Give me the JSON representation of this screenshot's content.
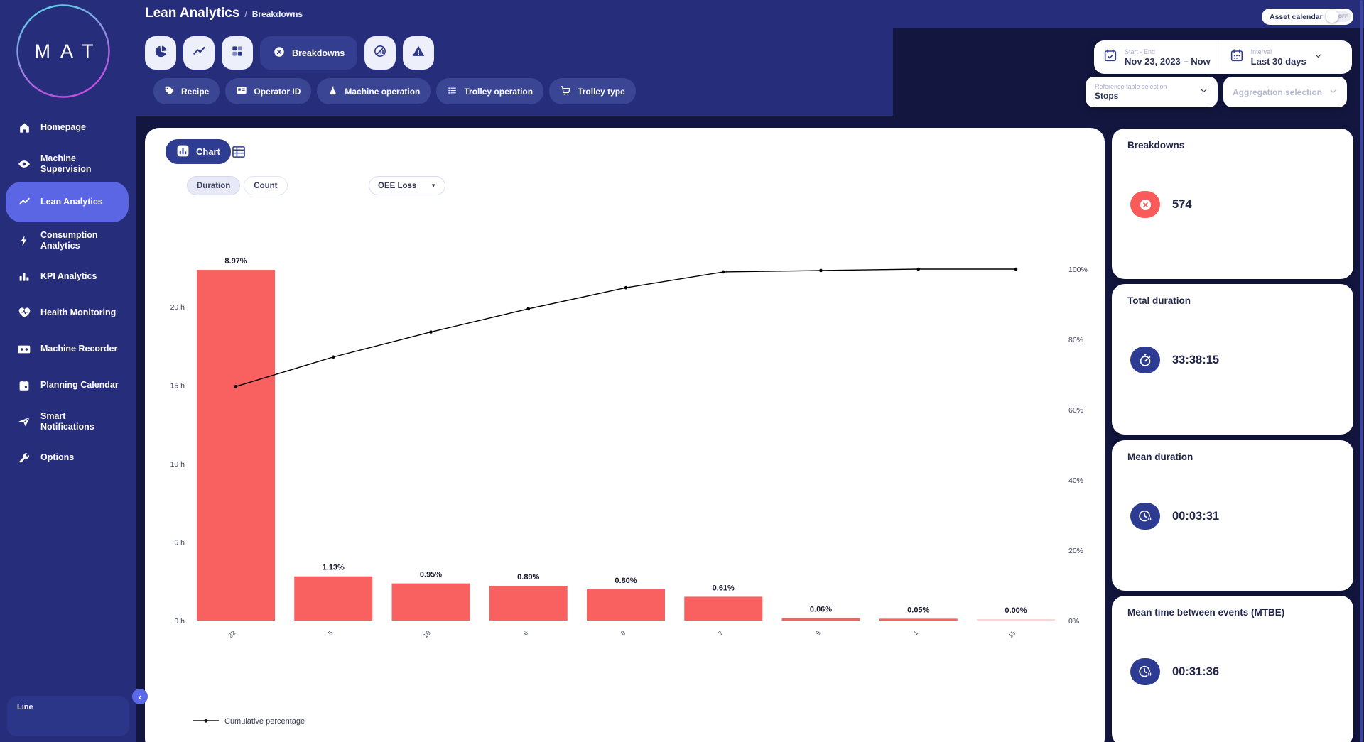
{
  "app": {
    "logo_text": "MAT"
  },
  "sidebar": {
    "items": [
      {
        "label": "Homepage",
        "icon": "home"
      },
      {
        "label": "Machine Supervision",
        "icon": "eye"
      },
      {
        "label": "Lean Analytics",
        "icon": "trend",
        "active": true
      },
      {
        "label": "Consumption Analytics",
        "icon": "bolt"
      },
      {
        "label": "KPI Analytics",
        "icon": "bar-chart"
      },
      {
        "label": "Health Monitoring",
        "icon": "heart-pulse"
      },
      {
        "label": "Machine Recorder",
        "icon": "cassette"
      },
      {
        "label": "Planning Calendar",
        "icon": "calendar"
      },
      {
        "label": "Smart Notifications",
        "icon": "paper-plane"
      },
      {
        "label": "Options",
        "icon": "wrench"
      }
    ],
    "collapse_icon": "‹"
  },
  "header": {
    "title": "Lean Analytics",
    "breadcrumb_separator": "/",
    "breadcrumb": "Breakdowns",
    "asset_calendar": {
      "label": "Asset calendar",
      "state": "OFF"
    }
  },
  "toolbar": {
    "active_view": {
      "label": "Breakdowns"
    },
    "chips": [
      {
        "label": "Recipe"
      },
      {
        "label": "Operator ID"
      },
      {
        "label": "Machine operation"
      },
      {
        "label": "Trolley operation"
      },
      {
        "label": "Trolley type"
      }
    ]
  },
  "filters": {
    "date_range": {
      "label": "Start - End",
      "value": "Nov 23, 2023 – Now"
    },
    "interval": {
      "label": "Interval",
      "value": "Last 30 days"
    },
    "reference_table": {
      "label": "Reference table selection",
      "value": "Stops"
    },
    "aggregation": {
      "label": "Aggregation selection"
    }
  },
  "panel": {
    "view_tab": "Chart",
    "mode": {
      "options": [
        "Duration",
        "Count"
      ],
      "selected": "Duration"
    },
    "metric_select": {
      "value": "OEE Loss"
    },
    "line_box_label": "Line"
  },
  "kpi_cards": [
    {
      "title": "Breakdowns",
      "value": "574",
      "accent": "#f95b5b",
      "icon": "x-circle"
    },
    {
      "title": "Total duration",
      "value": "33:38:15",
      "accent": "#2e3b92",
      "icon": "stopwatch"
    },
    {
      "title": "Mean duration",
      "value": "00:03:31",
      "accent": "#2e3b92",
      "icon": "clock-pause"
    },
    {
      "title": "Mean time between events (MTBE)",
      "value": "00:31:36",
      "accent": "#2e3b92",
      "icon": "clock-pause"
    }
  ],
  "chart_data": {
    "type": "pareto",
    "categories": [
      "22",
      "5",
      "10",
      "6",
      "8",
      "7",
      "9",
      "1",
      "15"
    ],
    "series": [
      {
        "name": "OEE Loss duration",
        "type": "bar",
        "unit": "hours",
        "values": [
          22.35,
          2.82,
          2.37,
          2.22,
          1.99,
          1.52,
          0.15,
          0.12,
          0.01
        ],
        "labels": [
          "8.97%",
          "1.13%",
          "0.95%",
          "0.89%",
          "0.80%",
          "0.61%",
          "0.06%",
          "0.05%",
          "0.00%"
        ],
        "color": "#f96161"
      },
      {
        "name": "Cumulative percentage",
        "type": "line",
        "unit": "percent",
        "values": [
          66.6,
          75.0,
          82.1,
          88.7,
          94.7,
          99.2,
          99.6,
          100,
          100
        ],
        "color": "#000000"
      }
    ],
    "left_axis": {
      "ticks": [
        "20 h",
        "15 h",
        "10 h",
        "5 h",
        "0 h"
      ],
      "tick_hours": [
        20,
        15,
        10,
        5,
        0
      ],
      "max": 20
    },
    "right_axis": {
      "ticks": [
        "100%",
        "80%",
        "60%",
        "40%",
        "20%",
        "0%"
      ],
      "tick_percent": [
        100,
        80,
        60,
        40,
        20,
        0
      ],
      "max": 100
    },
    "legend": [
      "Cumulative percentage"
    ],
    "grid": false
  }
}
